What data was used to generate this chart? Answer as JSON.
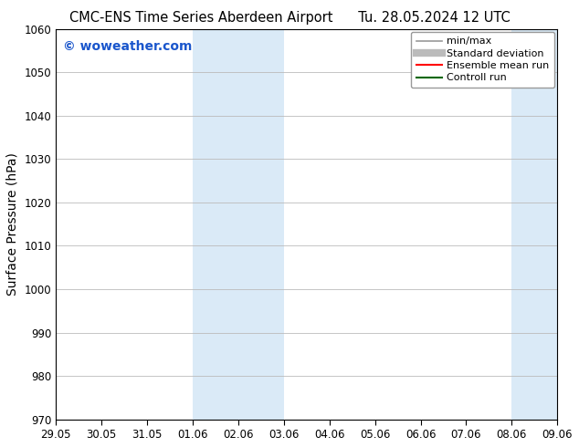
{
  "title_left": "CMC-ENS Time Series Aberdeen Airport",
  "title_right": "Tu. 28.05.2024 12 UTC",
  "ylabel": "Surface Pressure (hPa)",
  "xlabel": "",
  "watermark": "© woweather.com",
  "watermark_color": "#1a56cc",
  "ylim": [
    970,
    1060
  ],
  "yticks": [
    970,
    980,
    990,
    1000,
    1010,
    1020,
    1030,
    1040,
    1050,
    1060
  ],
  "xtick_labels": [
    "29.05",
    "30.05",
    "31.05",
    "01.06",
    "02.06",
    "03.06",
    "04.06",
    "05.06",
    "06.06",
    "07.06",
    "08.06",
    "09.06"
  ],
  "xtick_positions": [
    0,
    1,
    2,
    3,
    4,
    5,
    6,
    7,
    8,
    9,
    10,
    11
  ],
  "shade_bands": [
    {
      "xmin": 3,
      "xmax": 4,
      "color": "#daeaf7"
    },
    {
      "xmin": 4,
      "xmax": 5,
      "color": "#daeaf7"
    },
    {
      "xmin": 10,
      "xmax": 11,
      "color": "#daeaf7"
    }
  ],
  "bg_color": "#ffffff",
  "plot_bg_color": "#ffffff",
  "grid_color": "#bbbbbb",
  "legend_items": [
    {
      "label": "min/max",
      "color": "#999999",
      "lw": 1.2,
      "style": "solid"
    },
    {
      "label": "Standard deviation",
      "color": "#bbbbbb",
      "lw": 6,
      "style": "solid"
    },
    {
      "label": "Ensemble mean run",
      "color": "#ff0000",
      "lw": 1.5,
      "style": "solid"
    },
    {
      "label": "Controll run",
      "color": "#006600",
      "lw": 1.5,
      "style": "solid"
    }
  ],
  "spine_color": "#000000",
  "tick_color": "#000000",
  "title_fontsize": 10.5,
  "label_fontsize": 10,
  "tick_fontsize": 8.5,
  "legend_fontsize": 8,
  "watermark_fontsize": 10
}
